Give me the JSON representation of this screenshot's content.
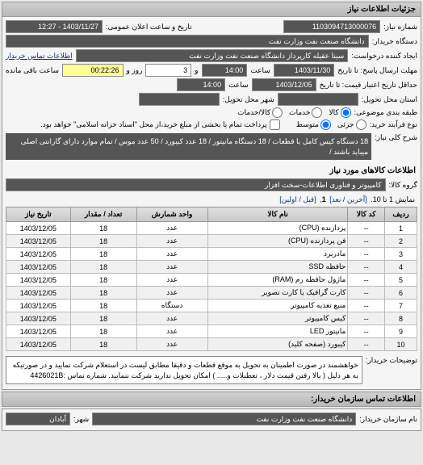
{
  "panel1": {
    "title": "جزئیات اطلاعات نیاز",
    "reqNoLabel": "شماره نیاز:",
    "reqNo": "1103094713000076",
    "announceDateLabel": "تاریخ و ساعت اعلان عمومی:",
    "announceDate": "1403/11/27 - 12:27",
    "buyerOrgLabel": "دستگاه خریدار:",
    "buyerOrg": "دانشگاه صنعت نفت وزارت نفت",
    "requesterLabel": "ایجاد کننده درخواست:",
    "requester": "سینا عقیله کارپرداز دانشگاه صنعت نفت وزارت نفت",
    "contactLinkLabel": "اطلاعات تماس خریدار",
    "deadlineSendLabel": "مهلت ارسال پاسخ: تا تاریخ",
    "deadlineSendDate": "1403/11/30",
    "timeLabel": "ساعت",
    "deadlineSendTime": "14:00",
    "andLabel": "و",
    "daysField": "3",
    "daysLabel": "روز و",
    "remainTime": "00:22:26",
    "remainLabel": "ساعت باقی مانده",
    "validityLabel": "حداقل تاریخ اعتبار قیمت: تا تاریخ",
    "validityDate": "1403/12/05",
    "validityTime": "14:00",
    "deliveryPlaceLabel": "استان محل تحویل:",
    "deliveryCityLabel": "شهر محل تحویل:",
    "packagingLabel": "طبقه بندی موضوعی:",
    "pkgOptions": {
      "kala": "کالا",
      "khadamat": "خدمات",
      "kalakhadamat": "کالا/خدمات"
    },
    "processLabel": "نوع فرآیند خرید:",
    "procOptions": {
      "low": "جزئی",
      "mid": "متوسط"
    },
    "paymentNote": "پرداخت تمام یا بخشی از مبلغ خرید،از محل \"اسناد خزانه اسلامی\" خواهد بود.",
    "summaryLabel": "شرح کلی نیاز:",
    "summary": "18 دستگاه کیس کامل با قطعات / 18 دستگاه مانیتور / 18 عدد کیبورد / 50 عدد موس / تمام موارد دارای گارانتی اصلی میباید باشند /"
  },
  "panel2": {
    "title": "اطلاعات کالاهای مورد نیاز",
    "groupLabel": "گروه کالا:",
    "group": "کامپیوتر و فناوری اطلاعات-سخت افزار",
    "pagerText": "نمایش 1 تا 10.",
    "pagerLinks": {
      "last": "[آخرین / بعد]",
      "page": "1",
      "first": "[قبل / اولین]"
    },
    "cols": {
      "row": "ردیف",
      "code": "کد کالا",
      "name": "نام کالا",
      "unit": "واحد شمارش",
      "qty": "تعداد / مقدار",
      "date": "تاریخ نیاز"
    },
    "rows": [
      {
        "n": "1",
        "code": "--",
        "name": "پردازنده (CPU)",
        "unit": "عدد",
        "qty": "18",
        "date": "1403/12/05"
      },
      {
        "n": "2",
        "code": "--",
        "name": "فن پردازنده (CPU)",
        "unit": "عدد",
        "qty": "18",
        "date": "1403/12/05"
      },
      {
        "n": "3",
        "code": "--",
        "name": "مادربرد",
        "unit": "عدد",
        "qty": "18",
        "date": "1403/12/05"
      },
      {
        "n": "4",
        "code": "--",
        "name": "حافظه SSD",
        "unit": "عدد",
        "qty": "18",
        "date": "1403/12/05"
      },
      {
        "n": "5",
        "code": "--",
        "name": "ماژول حافظه رم (RAM)",
        "unit": "عدد",
        "qty": "18",
        "date": "1403/12/05"
      },
      {
        "n": "6",
        "code": "--",
        "name": "کارت گرافیک یا کارت تصویر",
        "unit": "عدد",
        "qty": "18",
        "date": "1403/12/05"
      },
      {
        "n": "7",
        "code": "--",
        "name": "منبع تغذیه کامپیوتر",
        "unit": "دستگاه",
        "qty": "18",
        "date": "1403/12/05"
      },
      {
        "n": "8",
        "code": "--",
        "name": "کیس کامپیوتر",
        "unit": "عدد",
        "qty": "18",
        "date": "1403/12/05"
      },
      {
        "n": "9",
        "code": "--",
        "name": "مانیتور LED",
        "unit": "عدد",
        "qty": "18",
        "date": "1403/12/05"
      },
      {
        "n": "10",
        "code": "--",
        "name": "کیبورد (صفحه کلید)",
        "unit": "عدد",
        "qty": "18",
        "date": "1403/12/05"
      }
    ],
    "noteLabel": "توضیحات خریدار:",
    "note": "خواهشمند در صورت اطمینان به تحویل به موقع قطعات و دقیقا مطابق لیست در استعلام شرکت نمایید و در صورتیکه به هر دلیل ( بالا رفتن قیمت دلار ، تعطیلات و..... ) امکان تحویل ندارید شرکت ننمایید. شماره تماس :4426021B"
  },
  "panel3": {
    "title": "اطلاعات تماس سازمان خریدار:",
    "orgLabel": "نام سازمان خریدار:",
    "org": "دانشگاه صنعت نفت وزارت نفت",
    "cityLabel": "شهر:",
    "city": "آبادان"
  }
}
